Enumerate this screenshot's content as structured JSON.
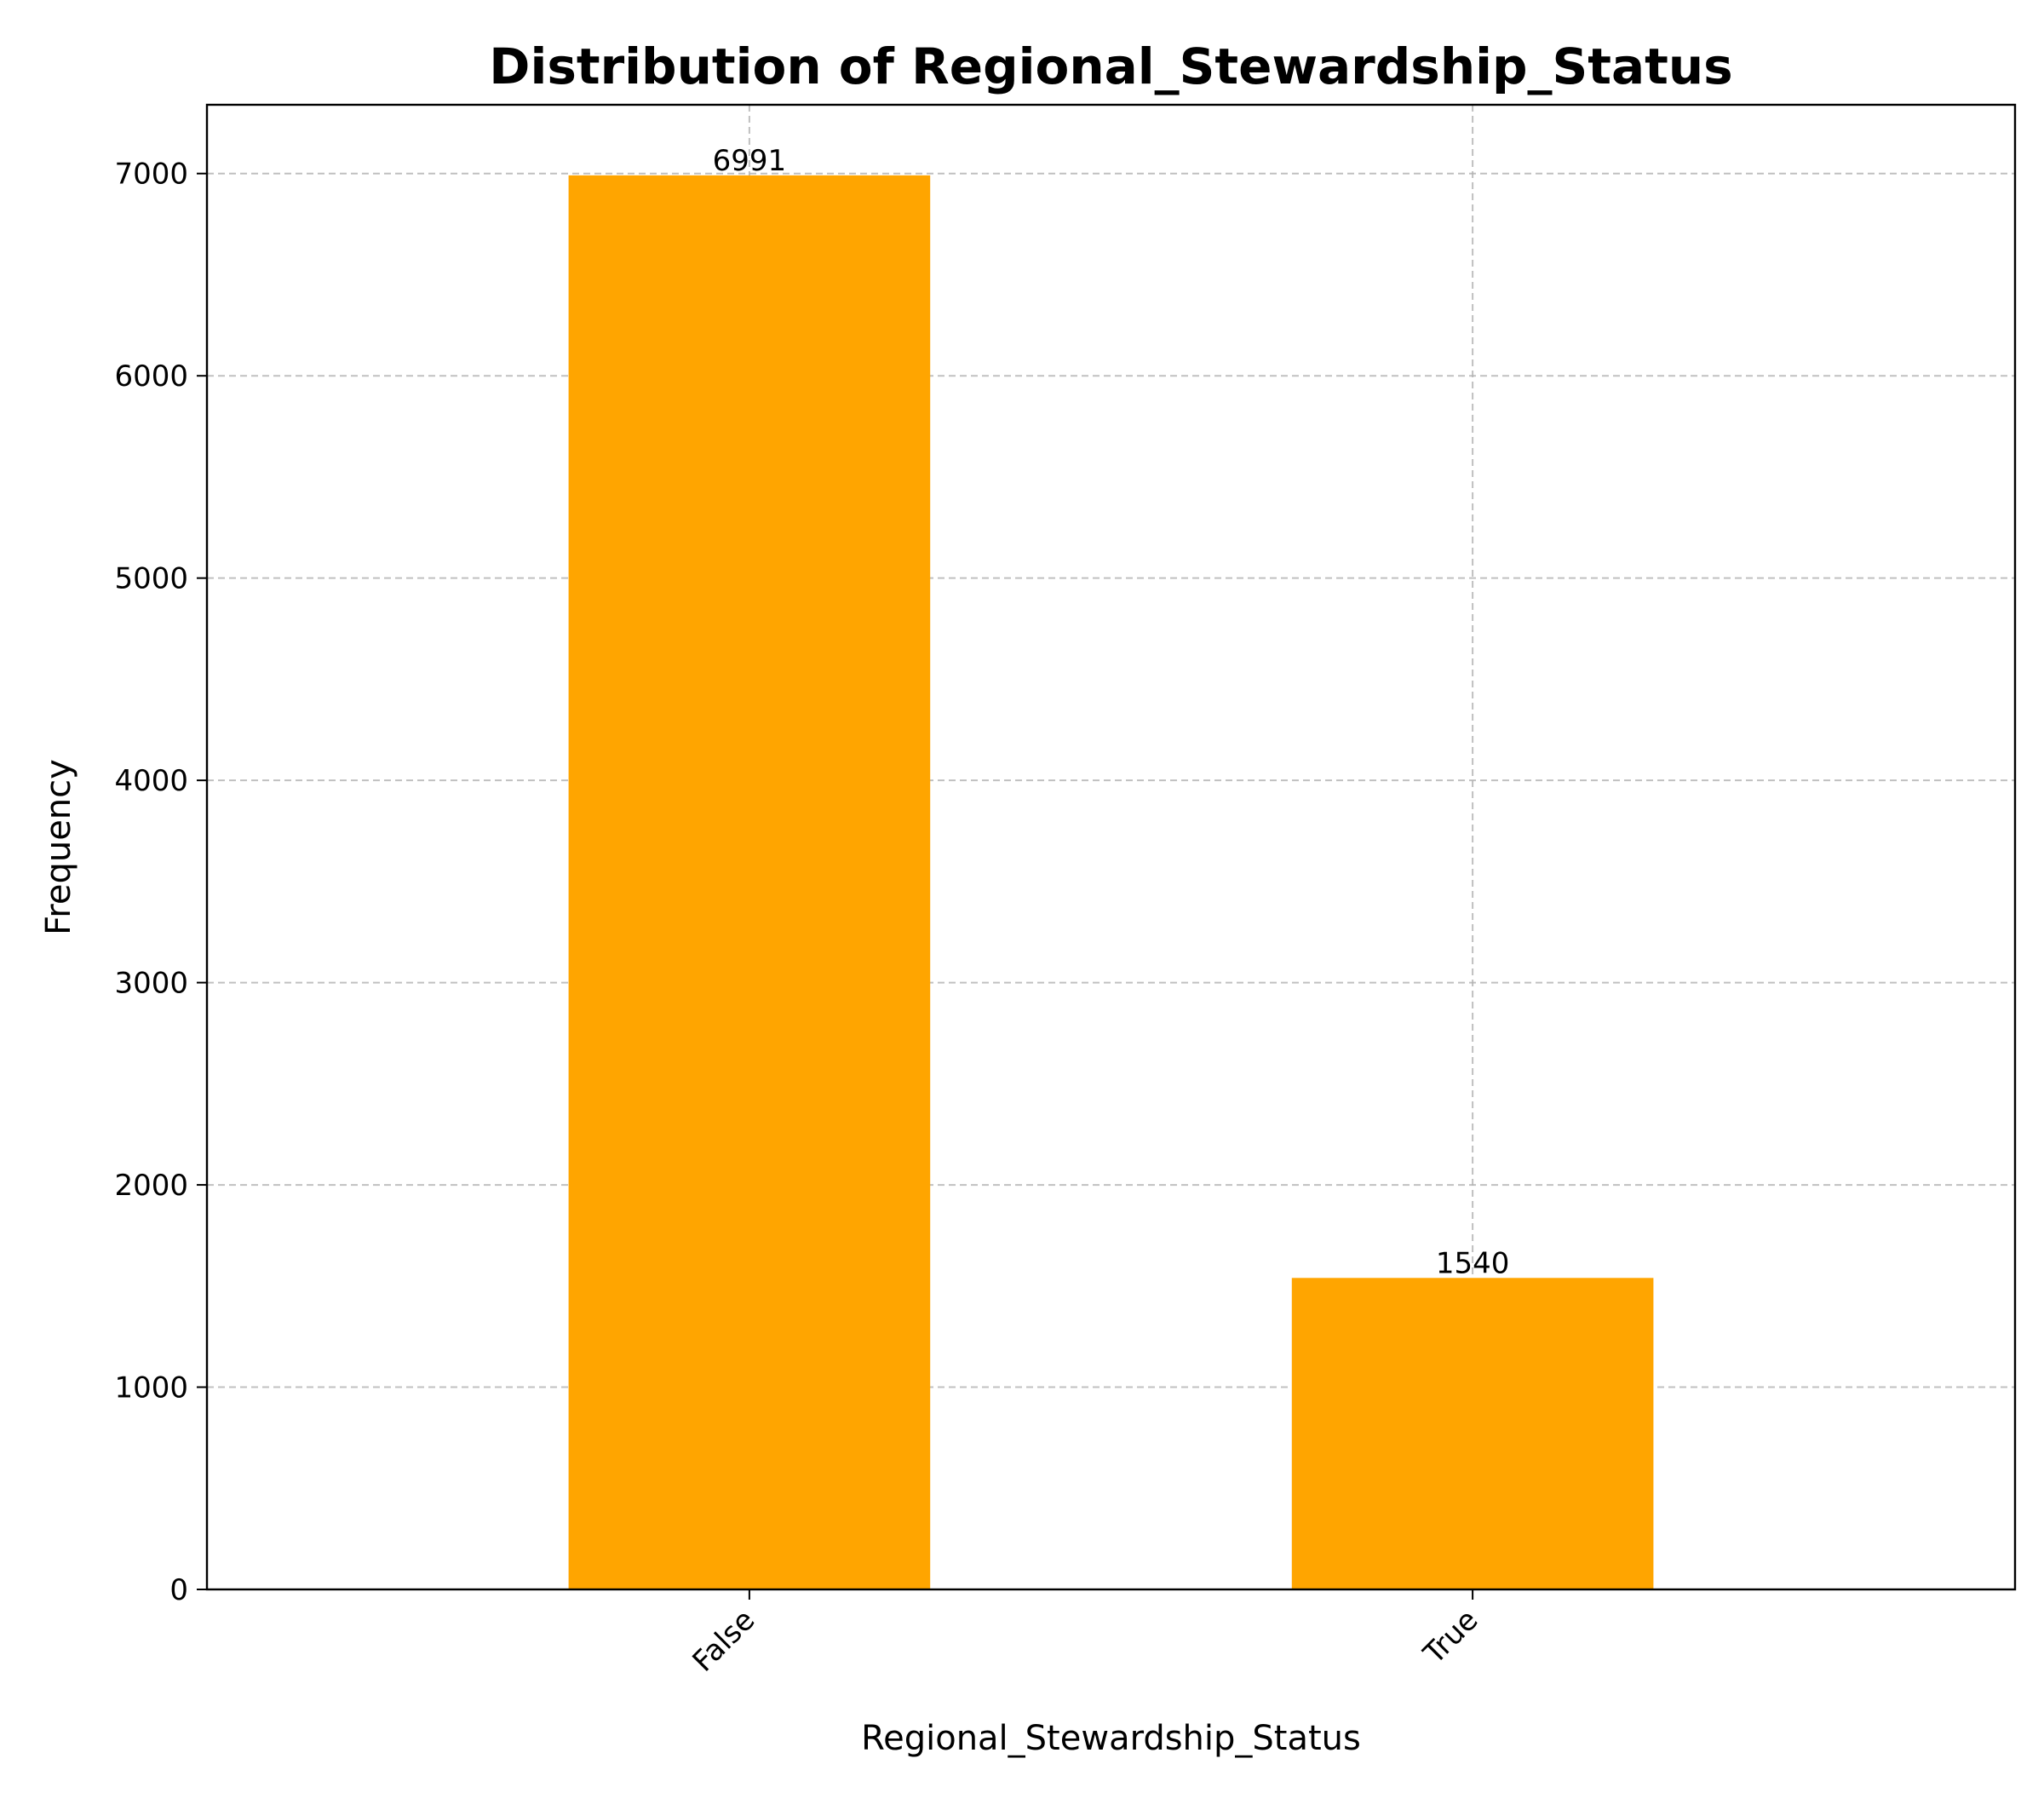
{
  "chart_data": {
    "type": "bar",
    "title": "Distribution of Regional_Stewardship_Status",
    "xlabel": "Regional_Stewardship_Status",
    "ylabel": "Frequency",
    "categories": [
      "False",
      "True"
    ],
    "values": [
      6991,
      1540
    ],
    "data_labels": [
      "6991",
      "1540"
    ],
    "ylim": [
      0,
      7340
    ],
    "yticks": [
      0,
      1000,
      2000,
      3000,
      4000,
      5000,
      6000,
      7000
    ],
    "ytick_labels": [
      "0",
      "1000",
      "2000",
      "3000",
      "4000",
      "5000",
      "6000",
      "7000"
    ],
    "grid": true,
    "bar_color": "#ffa500",
    "grid_color": "#b0b0b0"
  }
}
